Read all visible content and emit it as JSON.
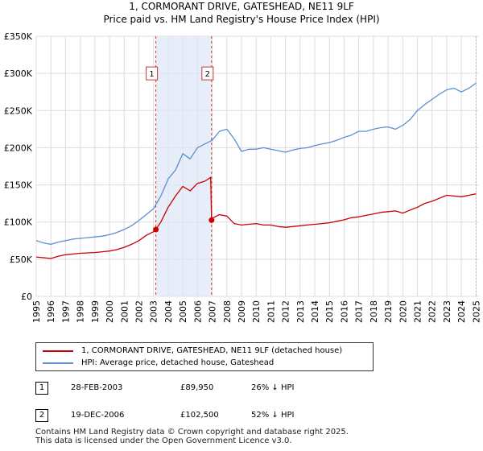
{
  "title_line1": "1, CORMORANT DRIVE, GATESHEAD, NE11 9LF",
  "title_line2": "Price paid vs. HM Land Registry's House Price Index (HPI)",
  "chart_data": {
    "type": "line",
    "title": "1, CORMORANT DRIVE, GATESHEAD, NE11 9LF — Price paid vs. HM Land Registry's House Price Index (HPI)",
    "xlim": [
      1995,
      2025.2
    ],
    "ylim": [
      0,
      350000
    ],
    "y_ticks": [
      0,
      50000,
      100000,
      150000,
      200000,
      250000,
      300000,
      350000
    ],
    "y_tick_labels": [
      "£0",
      "£50K",
      "£100K",
      "£150K",
      "£200K",
      "£250K",
      "£300K",
      "£350K"
    ],
    "x_ticks": [
      1995,
      1996,
      1997,
      1998,
      1999,
      2000,
      2001,
      2002,
      2003,
      2004,
      2005,
      2006,
      2007,
      2008,
      2009,
      2010,
      2011,
      2012,
      2013,
      2014,
      2015,
      2016,
      2017,
      2018,
      2019,
      2020,
      2021,
      2022,
      2023,
      2024,
      2025
    ],
    "x_tick_labels": [
      "1995",
      "1996",
      "1997",
      "1998",
      "1999",
      "2000",
      "2001",
      "2002",
      "2003",
      "2004",
      "2005",
      "2006",
      "2007",
      "2008",
      "2009",
      "2010",
      "2011",
      "2012",
      "2013",
      "2014",
      "2015",
      "2016",
      "2017",
      "2018",
      "2019",
      "2020",
      "2021",
      "2022",
      "2023",
      "2024",
      "2025"
    ],
    "grid": true,
    "shaded_region": [
      2003.16,
      2006.96
    ],
    "series": [
      {
        "name": "1, CORMORANT DRIVE, GATESHEAD, NE11 9LF (detached house)",
        "color": "#cc0000",
        "x": [
          1995,
          1995.5,
          1996,
          1996.5,
          1997,
          1997.5,
          1998,
          1998.5,
          1999,
          1999.5,
          2000,
          2000.5,
          2001,
          2001.5,
          2002,
          2002.5,
          2003,
          2003.16,
          2003.5,
          2004,
          2004.5,
          2005,
          2005.5,
          2006,
          2006.5,
          2006.9,
          2006.96,
          2007,
          2007.5,
          2008,
          2008.5,
          2009,
          2009.5,
          2010,
          2010.5,
          2011,
          2011.5,
          2012,
          2012.5,
          2013,
          2013.5,
          2014,
          2014.5,
          2015,
          2015.5,
          2016,
          2016.5,
          2017,
          2017.5,
          2018,
          2018.5,
          2019,
          2019.5,
          2020,
          2020.5,
          2021,
          2021.5,
          2022,
          2022.5,
          2023,
          2023.5,
          2024,
          2024.5,
          2025
        ],
        "values": [
          53000,
          52000,
          51000,
          54000,
          56000,
          57000,
          58000,
          58500,
          59000,
          60000,
          61000,
          63000,
          66000,
          70000,
          75000,
          82000,
          87000,
          89950,
          100000,
          120000,
          135000,
          148000,
          142000,
          152000,
          155000,
          160000,
          102500,
          105000,
          110000,
          108000,
          98000,
          96000,
          97000,
          98000,
          96000,
          96000,
          94000,
          93000,
          94000,
          95000,
          96000,
          97000,
          98000,
          99000,
          101000,
          103000,
          106000,
          107000,
          109000,
          111000,
          113000,
          114000,
          115000,
          112000,
          116000,
          120000,
          125000,
          128000,
          132000,
          136000,
          135000,
          134000,
          136000,
          138000
        ]
      },
      {
        "name": "HPI: Average price, detached house, Gateshead",
        "color": "#5b8fd0",
        "x": [
          1995,
          1995.5,
          1996,
          1996.5,
          1997,
          1997.5,
          1998,
          1998.5,
          1999,
          1999.5,
          2000,
          2000.5,
          2001,
          2001.5,
          2002,
          2002.5,
          2003,
          2003.5,
          2004,
          2004.5,
          2005,
          2005.5,
          2006,
          2006.5,
          2007,
          2007.5,
          2008,
          2008.5,
          2009,
          2009.5,
          2010,
          2010.5,
          2011,
          2011.5,
          2012,
          2012.5,
          2013,
          2013.5,
          2014,
          2014.5,
          2015,
          2015.5,
          2016,
          2016.5,
          2017,
          2017.5,
          2018,
          2018.5,
          2019,
          2019.5,
          2020,
          2020.5,
          2021,
          2021.5,
          2022,
          2022.5,
          2023,
          2023.5,
          2024,
          2024.5,
          2025
        ],
        "values": [
          75000,
          72000,
          70000,
          73000,
          75000,
          77000,
          78000,
          79000,
          80000,
          81000,
          83000,
          86000,
          90000,
          95000,
          102000,
          110000,
          118000,
          135000,
          158000,
          170000,
          192000,
          185000,
          200000,
          205000,
          210000,
          222000,
          225000,
          212000,
          195000,
          198000,
          198000,
          200000,
          198000,
          196000,
          194000,
          197000,
          199000,
          200000,
          203000,
          205000,
          207000,
          210000,
          214000,
          217000,
          222000,
          222000,
          225000,
          227000,
          228000,
          225000,
          230000,
          238000,
          250000,
          258000,
          265000,
          272000,
          278000,
          280000,
          275000,
          280000,
          287000
        ]
      }
    ],
    "markers": [
      {
        "label": "1",
        "x": 2003.16,
        "y": 89950
      },
      {
        "label": "2",
        "x": 2006.96,
        "y": 102500
      }
    ]
  },
  "legend": {
    "property_label": "1, CORMORANT DRIVE, GATESHEAD, NE11 9LF (detached house)",
    "hpi_label": "HPI: Average price, detached house, Gateshead",
    "property_color": "#cc0000",
    "hpi_color": "#5b8fd0"
  },
  "transactions": [
    {
      "num": "1",
      "date": "28-FEB-2003",
      "price": "£89,950",
      "hpi": "26% ↓ HPI"
    },
    {
      "num": "2",
      "date": "19-DEC-2006",
      "price": "£102,500",
      "hpi": "52% ↓ HPI"
    }
  ],
  "footer_line1": "Contains HM Land Registry data © Crown copyright and database right 2025.",
  "footer_line2": "This data is licensed under the Open Government Licence v3.0."
}
